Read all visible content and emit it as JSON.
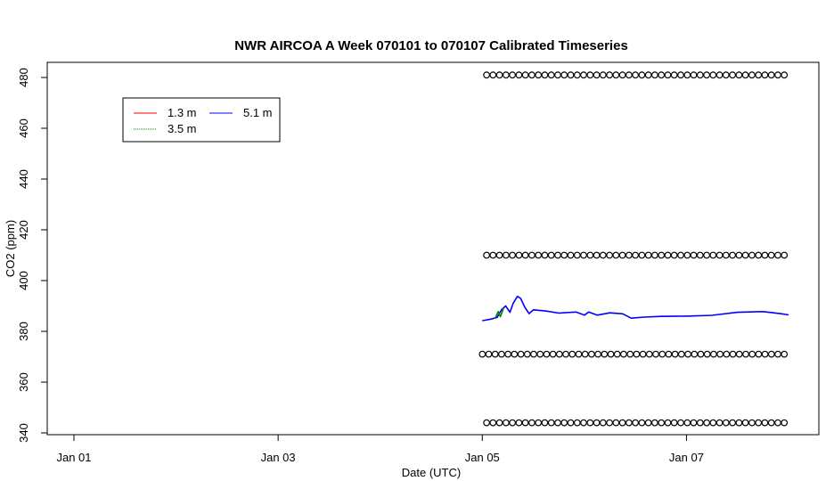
{
  "chart_data": {
    "type": "line",
    "title": "NWR AIRCOA A  Week 070101 to 070107  Calibrated Timeseries",
    "xlabel": "Date (UTC)",
    "ylabel": "CO2 (ppm)",
    "xlim": [
      "2007-01-01T00:00",
      "2007-01-08T00:00"
    ],
    "ylim": [
      340,
      484
    ],
    "x_ticks": [
      {
        "x": "2007-01-01T00:00",
        "label": "Jan 01"
      },
      {
        "x": "2007-01-03T00:00",
        "label": "Jan 03"
      },
      {
        "x": "2007-01-05T00:00",
        "label": "Jan 05"
      },
      {
        "x": "2007-01-07T00:00",
        "label": "Jan 07"
      }
    ],
    "y_ticks": [
      340,
      360,
      380,
      400,
      420,
      440,
      460,
      480
    ],
    "legend": {
      "position": "top-left",
      "entries": [
        {
          "label": "1.3 m",
          "color": "#ff0000"
        },
        {
          "label": "5.1 m",
          "color": "#0000ff"
        },
        {
          "label": "3.5 m",
          "color": "#008000"
        }
      ]
    },
    "series": [
      {
        "name": "5.1 m",
        "color": "#0000ff",
        "points": [
          [
            "2007-01-05T00:00",
            384.2
          ],
          [
            "2007-01-05T02:00",
            384.8
          ],
          [
            "2007-01-05T03:30",
            385.5
          ],
          [
            "2007-01-05T04:30",
            388.5
          ],
          [
            "2007-01-05T05:30",
            390.0
          ],
          [
            "2007-01-05T06:30",
            387.5
          ],
          [
            "2007-01-05T07:15",
            391.0
          ],
          [
            "2007-01-05T08:15",
            393.8
          ],
          [
            "2007-01-05T09:00",
            393.0
          ],
          [
            "2007-01-05T10:00",
            389.5
          ],
          [
            "2007-01-05T11:00",
            387.0
          ],
          [
            "2007-01-05T12:00",
            388.5
          ],
          [
            "2007-01-05T15:00",
            388.0
          ],
          [
            "2007-01-05T18:00",
            387.2
          ],
          [
            "2007-01-05T22:00",
            387.6
          ],
          [
            "2007-01-06T00:00",
            386.4
          ],
          [
            "2007-01-06T01:00",
            387.6
          ],
          [
            "2007-01-06T03:00",
            386.4
          ],
          [
            "2007-01-06T06:00",
            387.3
          ],
          [
            "2007-01-06T09:00",
            386.9
          ],
          [
            "2007-01-06T11:00",
            385.2
          ],
          [
            "2007-01-06T14:00",
            385.6
          ],
          [
            "2007-01-06T18:00",
            385.9
          ],
          [
            "2007-01-07T00:00",
            386.0
          ],
          [
            "2007-01-07T06:00",
            386.3
          ],
          [
            "2007-01-07T12:00",
            387.5
          ],
          [
            "2007-01-07T18:00",
            387.8
          ],
          [
            "2007-01-07T22:00",
            387.0
          ],
          [
            "2007-01-08T00:00",
            386.5
          ]
        ]
      },
      {
        "name": "3.5 m",
        "color": "#008000",
        "points": [
          [
            "2007-01-05T03:00",
            385.0
          ],
          [
            "2007-01-05T03:45",
            387.8
          ],
          [
            "2007-01-05T04:15",
            385.8
          ],
          [
            "2007-01-05T05:00",
            389.2
          ]
        ]
      },
      {
        "name": "calibration",
        "marker": "circle",
        "rows": [
          {
            "y": 481,
            "x_start": "2007-01-05T01:00",
            "x_end": "2007-01-07T23:00",
            "count": 47
          },
          {
            "y": 410,
            "x_start": "2007-01-05T01:00",
            "x_end": "2007-01-07T23:00",
            "count": 47
          },
          {
            "y": 371,
            "x_start": "2007-01-05T00:00",
            "x_end": "2007-01-07T23:00",
            "count": 48
          },
          {
            "y": 344,
            "x_start": "2007-01-05T01:00",
            "x_end": "2007-01-07T23:00",
            "count": 47
          }
        ]
      }
    ]
  }
}
